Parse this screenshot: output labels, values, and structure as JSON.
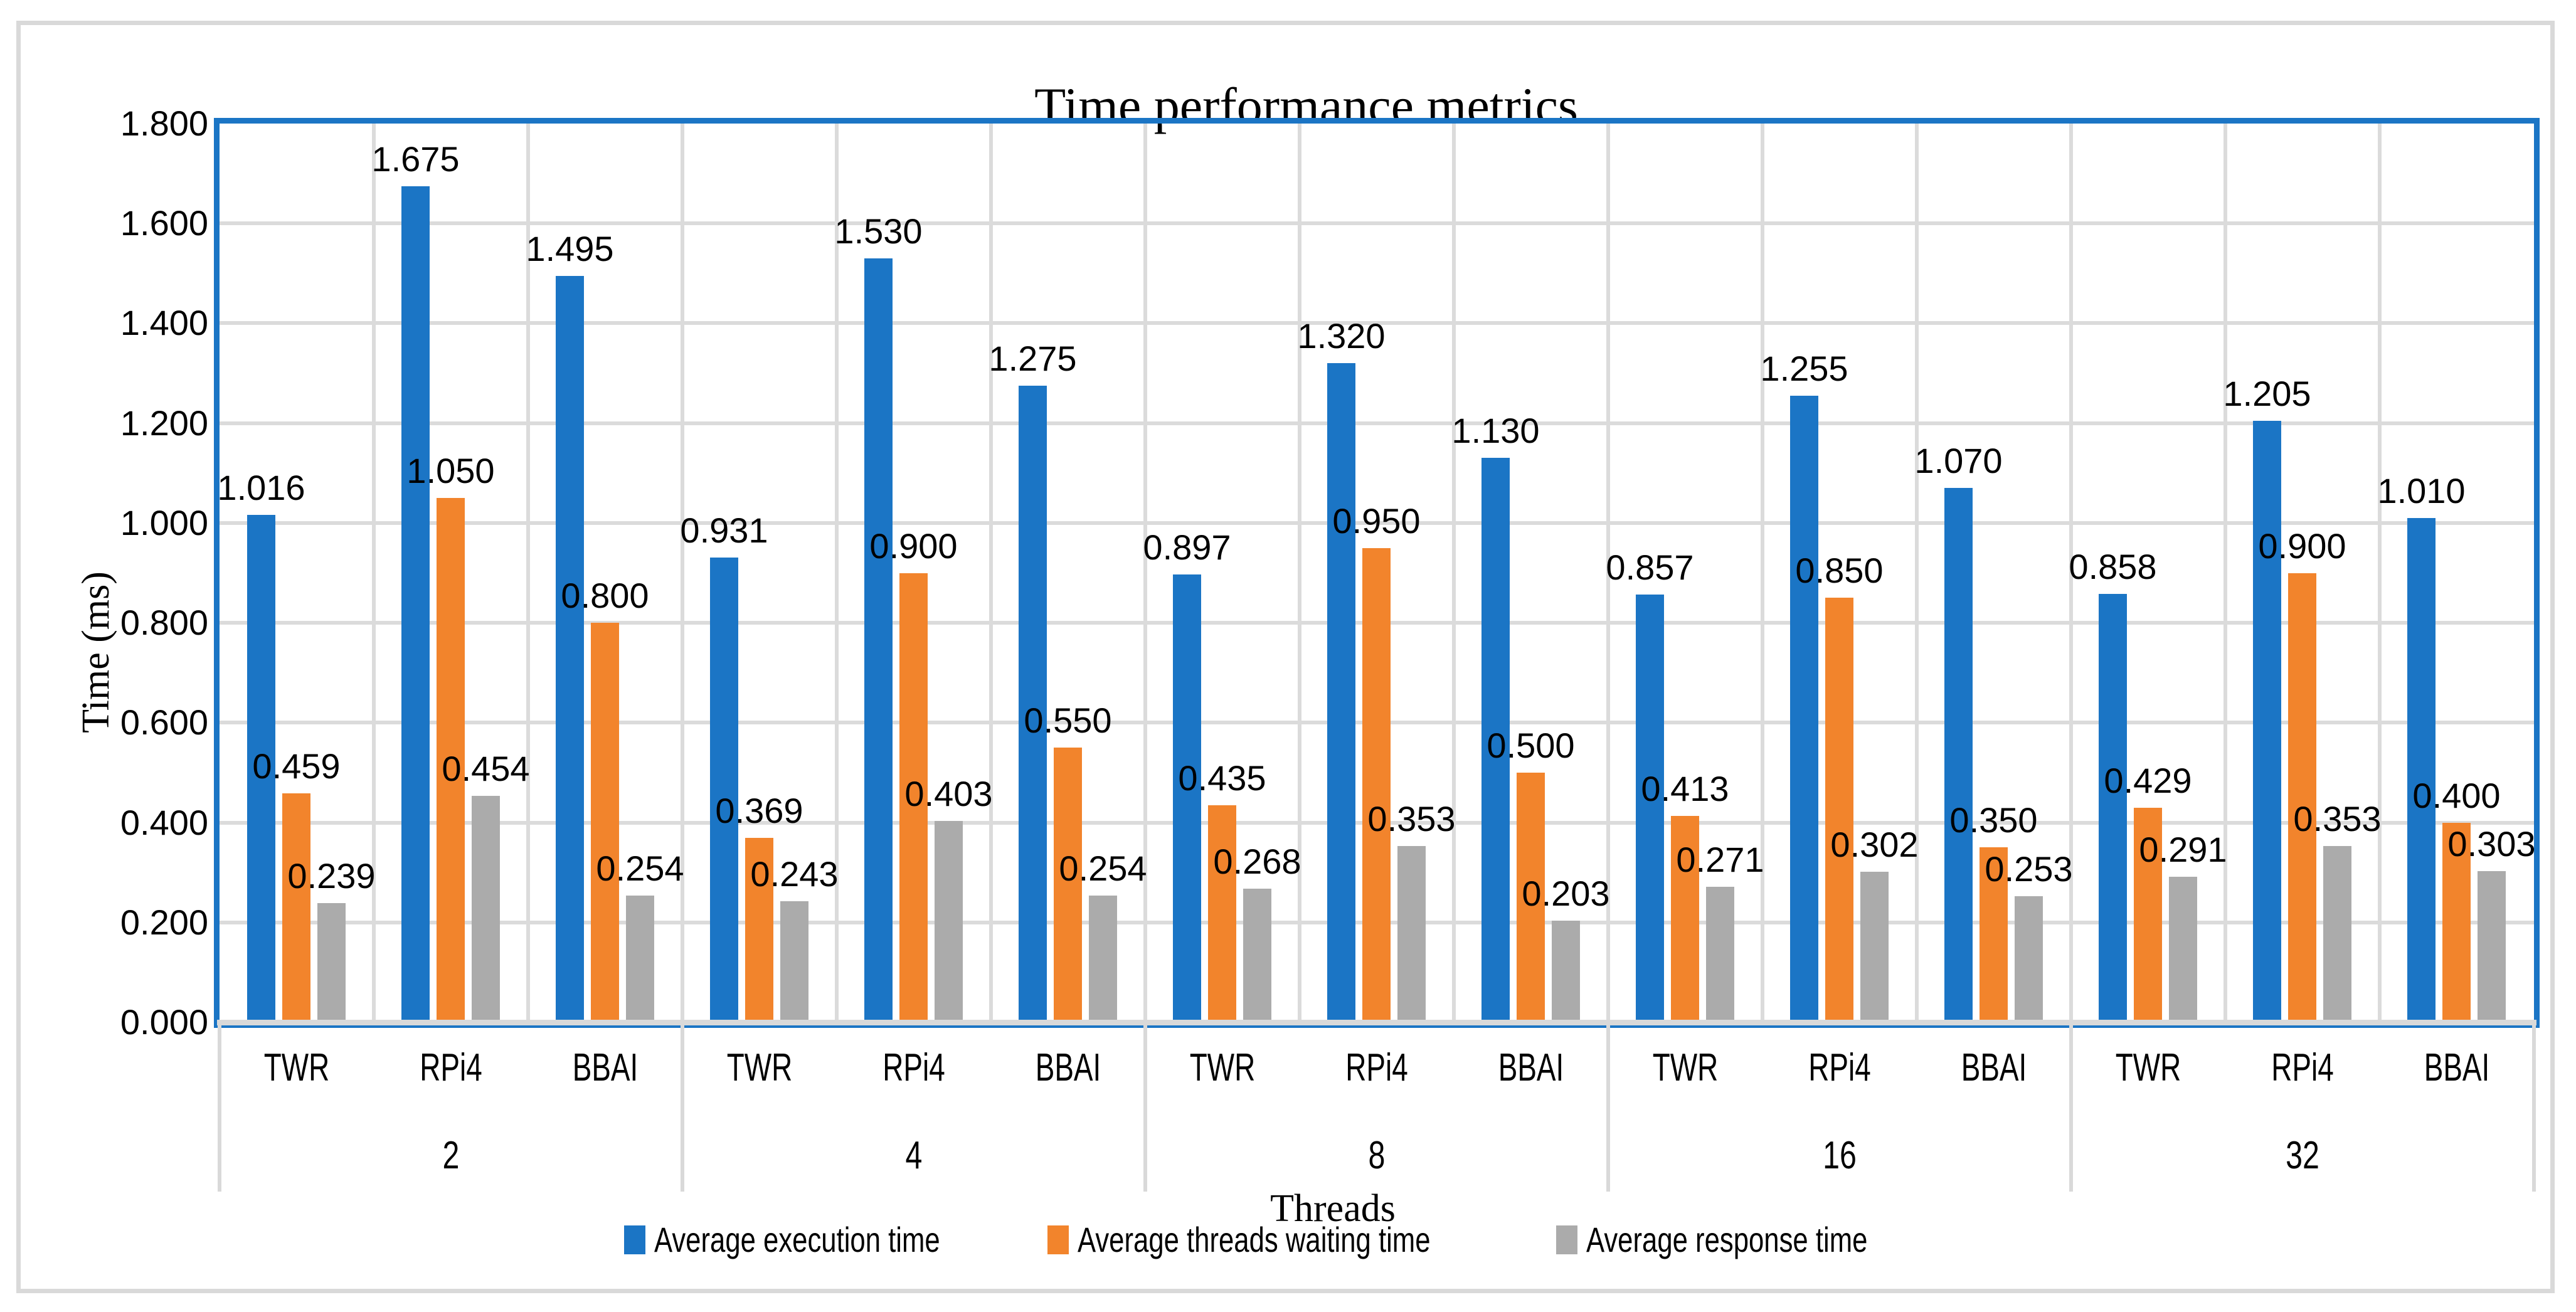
{
  "chart_data": {
    "type": "bar",
    "title": "Time performance metrics",
    "xlabel": "Threads",
    "ylabel": "Time (ms)",
    "ylim": [
      0.0,
      1.8
    ],
    "ytick_step": 0.2,
    "ytick_labels": [
      "1.800",
      "1.600",
      "1.400",
      "1.200",
      "1.000",
      "0.800",
      "0.600",
      "0.400",
      "0.200",
      "0.000"
    ],
    "grid": true,
    "legend_position": "bottom",
    "value_decimals": 3,
    "device_labels": [
      "TWR",
      "RPi4",
      "BBAI"
    ],
    "series": [
      {
        "name": "Average execution time",
        "color": "#1B75C5"
      },
      {
        "name": "Average threads waiting time",
        "color": "#F2842C"
      },
      {
        "name": "Average response time",
        "color": "#ABABAB"
      }
    ],
    "groups": [
      {
        "label": "2",
        "values": [
          [
            1.016,
            0.459,
            0.239
          ],
          [
            1.675,
            1.05,
            0.454
          ],
          [
            1.495,
            0.8,
            0.254
          ]
        ]
      },
      {
        "label": "4",
        "values": [
          [
            0.931,
            0.369,
            0.243
          ],
          [
            1.53,
            0.9,
            0.403
          ],
          [
            1.275,
            0.55,
            0.254
          ]
        ]
      },
      {
        "label": "8",
        "values": [
          [
            0.897,
            0.435,
            0.268
          ],
          [
            1.32,
            0.95,
            0.353
          ],
          [
            1.13,
            0.5,
            0.203
          ]
        ]
      },
      {
        "label": "16",
        "values": [
          [
            0.857,
            0.413,
            0.271
          ],
          [
            1.255,
            0.85,
            0.302
          ],
          [
            1.07,
            0.35,
            0.253
          ]
        ]
      },
      {
        "label": "32",
        "values": [
          [
            0.858,
            0.429,
            0.291
          ],
          [
            1.205,
            0.9,
            0.353
          ],
          [
            1.01,
            0.4,
            0.303
          ]
        ]
      }
    ]
  },
  "frame": {
    "outer_border_color": "#D9D9D9",
    "plot_border_color": "#1B75C5",
    "gridline_color": "#DBDBDB",
    "axis_line_color": "#D9D9D9",
    "background": "#FFFFFF",
    "text_color": "#000000"
  }
}
